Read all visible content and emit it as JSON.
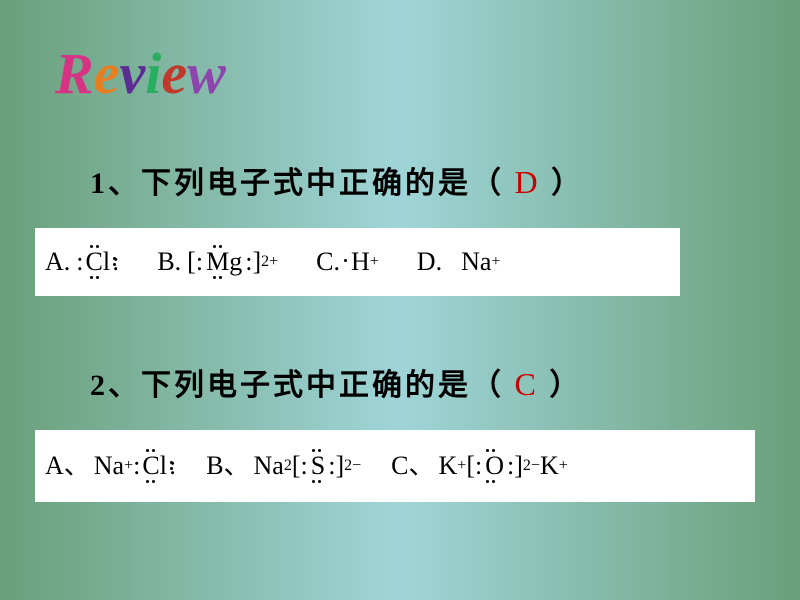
{
  "title_chars": [
    "R",
    "e",
    "v",
    "i",
    "e",
    "w"
  ],
  "q1": {
    "prefix": "1、下列电子式中正确的是（",
    "answer": "D",
    "suffix": "）"
  },
  "q2": {
    "prefix": "2、下列电子式中正确的是（",
    "answer": "C",
    "suffix": "）"
  },
  "box1": {
    "labels": {
      "a": "A.",
      "b": "B.",
      "c": "C.",
      "d": "D."
    },
    "cl": "Cl",
    "mg": "Mg",
    "mg_charge": "2+",
    "h": "H",
    "h_charge": "+",
    "na": "Na",
    "na_charge": "+",
    "lbracket": "[",
    "rbracket": "]",
    "colon": ":"
  },
  "box2": {
    "labels": {
      "a": "A、",
      "b": "B、",
      "c": "C、"
    },
    "na": "Na",
    "plus": "+",
    "cl": "Cl",
    "na2": "Na",
    "sub2": "2",
    "s": "S",
    "s_charge": "2−",
    "k": "K",
    "o": "O",
    "o_charge": "2−",
    "lbracket": "[",
    "rbracket": "]",
    "colon": ":"
  },
  "colors": {
    "bg_left": "#6a9f7a",
    "bg_mid": "#9fd5d8",
    "bg_right": "#6a9f7a",
    "text": "#000000",
    "answer": "#cc0000",
    "box_bg": "#ffffff"
  },
  "fonts": {
    "question_size": 30,
    "formula_size": 26,
    "title_size": 58
  }
}
